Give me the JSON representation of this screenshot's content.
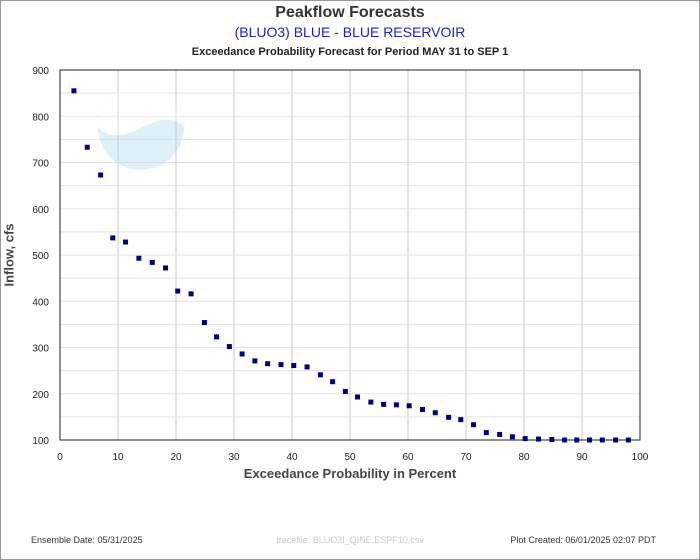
{
  "header": {
    "title": "Peakflow Forecasts",
    "subtitle": "(BLUO3) BLUE - BLUE RESERVOIR",
    "period": "Exceedance Probability Forecast for Period MAY 31 to SEP 1"
  },
  "watermark": {
    "text": "NOAA",
    "icon": "noaa-logo"
  },
  "footer": {
    "ensemble_date": "Ensemble Date: 05/31/2025",
    "tracefile": "tracefile: BLUO3I_QINE.ESPF10.csv",
    "plot_created": "Plot Created: 06/01/2025 02:07 PDT"
  },
  "colors": {
    "marker": "#00007f",
    "grid": "#c8c8c8",
    "subtitle": "#1f22c8"
  },
  "chart_data": {
    "type": "scatter",
    "title": "Peakflow Forecasts",
    "subtitle": "(BLUO3) BLUE - BLUE RESERVOIR",
    "xlabel": "Exceedance Probability in Percent",
    "ylabel": "Inflow, cfs",
    "xlim": [
      0,
      100
    ],
    "ylim": [
      100,
      900
    ],
    "xticks": [
      0,
      10,
      20,
      30,
      40,
      50,
      60,
      70,
      80,
      90,
      100
    ],
    "yticks": [
      100,
      200,
      300,
      400,
      500,
      600,
      700,
      800,
      900
    ],
    "grid": true,
    "x": [
      2.4,
      4.7,
      7.0,
      9.1,
      11.3,
      13.6,
      15.9,
      18.2,
      20.3,
      22.6,
      24.9,
      27.0,
      29.2,
      31.4,
      33.6,
      35.8,
      38.1,
      40.3,
      42.6,
      44.9,
      47.0,
      49.2,
      51.3,
      53.6,
      55.8,
      58.0,
      60.2,
      62.5,
      64.7,
      67.0,
      69.1,
      71.3,
      73.5,
      75.8,
      78.0,
      80.2,
      82.5,
      84.8,
      87.0,
      89.1,
      91.3,
      93.5,
      95.8,
      98.0
    ],
    "y": [
      855,
      733,
      673,
      537,
      528,
      493,
      484,
      472,
      422,
      416,
      354,
      323,
      302,
      286,
      271,
      265,
      263,
      261,
      258,
      241,
      226,
      205,
      193,
      182,
      177,
      176,
      174,
      166,
      159,
      149,
      144,
      133,
      116,
      112,
      107,
      103,
      102,
      101,
      100,
      100,
      100,
      100,
      100,
      100
    ]
  }
}
